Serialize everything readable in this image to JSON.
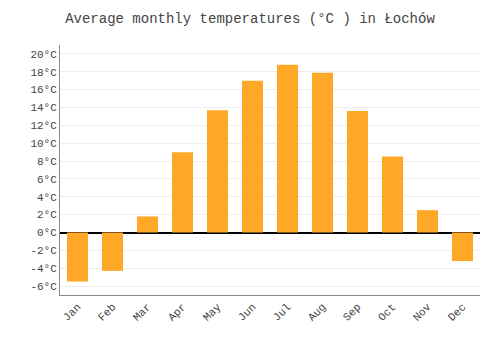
{
  "chart_data": {
    "type": "bar",
    "title": "Average monthly temperatures (°C ) in Łochów",
    "categories": [
      "Jan",
      "Feb",
      "Mar",
      "Apr",
      "May",
      "Jun",
      "Jul",
      "Aug",
      "Sep",
      "Oct",
      "Nov",
      "Dec"
    ],
    "values": [
      -5.5,
      -4.3,
      1.8,
      9.0,
      13.7,
      17.0,
      18.8,
      17.9,
      13.6,
      8.5,
      2.5,
      -3.2
    ],
    "color": "#FFA726",
    "ylim": [
      -7,
      21
    ],
    "yticks": [
      {
        "value": -6,
        "label": "-6°C"
      },
      {
        "value": -4,
        "label": "-4°C"
      },
      {
        "value": -2,
        "label": "-2°C"
      },
      {
        "value": 0,
        "label": "0°C"
      },
      {
        "value": 2,
        "label": "2°C"
      },
      {
        "value": 4,
        "label": "4°C"
      },
      {
        "value": 6,
        "label": "6°C"
      },
      {
        "value": 8,
        "label": "8°C"
      },
      {
        "value": 10,
        "label": "10°C"
      },
      {
        "value": 12,
        "label": "12°C"
      },
      {
        "value": 14,
        "label": "14°C"
      },
      {
        "value": 16,
        "label": "16°C"
      },
      {
        "value": 18,
        "label": "18°C"
      },
      {
        "value": 20,
        "label": "20°C"
      }
    ],
    "grid": true
  }
}
